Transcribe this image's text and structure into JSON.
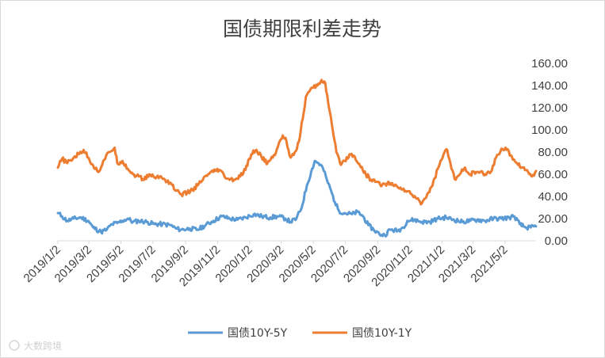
{
  "chart_data": {
    "type": "line",
    "title": "国债期限利差走势",
    "xlabel": "",
    "ylabel": "",
    "x_start": "2019-01-02",
    "x_end": "2021-06-30",
    "x_tick_labels": [
      "2019/1/2",
      "2019/3/2",
      "2019/5/2",
      "2019/7/2",
      "2019/9/2",
      "2019/11/2",
      "2020/1/2",
      "2020/3/2",
      "2020/5/2",
      "2020/7/2",
      "2020/9/2",
      "2020/11/2",
      "2021/1/2",
      "2021/3/2",
      "2021/5/2"
    ],
    "x_tick_dates": [
      "2019-01-02",
      "2019-03-02",
      "2019-05-02",
      "2019-07-02",
      "2019-09-02",
      "2019-11-02",
      "2020-01-02",
      "2020-03-02",
      "2020-05-02",
      "2020-07-02",
      "2020-09-02",
      "2020-11-02",
      "2021-01-02",
      "2021-03-02",
      "2021-05-02"
    ],
    "y_tick_labels": [
      "0.00",
      "20.00",
      "40.00",
      "60.00",
      "80.00",
      "100.00",
      "120.00",
      "140.00",
      "160.00"
    ],
    "ylim": [
      0,
      160
    ],
    "grid": false,
    "legend_position": "bottom",
    "series": [
      {
        "name": "国债10Y-5Y",
        "color": "#5b9bd5",
        "points": [
          [
            "2019-01-02",
            25
          ],
          [
            "2019-01-10",
            22
          ],
          [
            "2019-01-20",
            18
          ],
          [
            "2019-02-01",
            20
          ],
          [
            "2019-02-15",
            21
          ],
          [
            "2019-03-01",
            18
          ],
          [
            "2019-03-10",
            12
          ],
          [
            "2019-03-25",
            8
          ],
          [
            "2019-04-05",
            10
          ],
          [
            "2019-04-15",
            15
          ],
          [
            "2019-04-25",
            16
          ],
          [
            "2019-05-05",
            18
          ],
          [
            "2019-05-15",
            20
          ],
          [
            "2019-05-25",
            17
          ],
          [
            "2019-06-05",
            18
          ],
          [
            "2019-06-20",
            17
          ],
          [
            "2019-07-05",
            15
          ],
          [
            "2019-07-20",
            15
          ],
          [
            "2019-08-05",
            14
          ],
          [
            "2019-08-15",
            11
          ],
          [
            "2019-08-25",
            10
          ],
          [
            "2019-09-10",
            11
          ],
          [
            "2019-09-25",
            10
          ],
          [
            "2019-10-10",
            14
          ],
          [
            "2019-10-25",
            18
          ],
          [
            "2019-11-10",
            22
          ],
          [
            "2019-11-25",
            20
          ],
          [
            "2019-12-10",
            19
          ],
          [
            "2019-12-25",
            21
          ],
          [
            "2020-01-10",
            24
          ],
          [
            "2020-01-25",
            22
          ],
          [
            "2020-02-10",
            21
          ],
          [
            "2020-02-25",
            22
          ],
          [
            "2020-03-10",
            20
          ],
          [
            "2020-03-20",
            17
          ],
          [
            "2020-03-31",
            20
          ],
          [
            "2020-04-10",
            30
          ],
          [
            "2020-04-20",
            50
          ],
          [
            "2020-04-28",
            62
          ],
          [
            "2020-05-05",
            72
          ],
          [
            "2020-05-12",
            70
          ],
          [
            "2020-05-20",
            66
          ],
          [
            "2020-05-28",
            55
          ],
          [
            "2020-06-05",
            45
          ],
          [
            "2020-06-12",
            35
          ],
          [
            "2020-06-20",
            27
          ],
          [
            "2020-06-30",
            25
          ],
          [
            "2020-07-15",
            24
          ],
          [
            "2020-07-25",
            26
          ],
          [
            "2020-08-05",
            22
          ],
          [
            "2020-08-15",
            14
          ],
          [
            "2020-08-25",
            10
          ],
          [
            "2020-09-05",
            6
          ],
          [
            "2020-09-15",
            5
          ],
          [
            "2020-09-25",
            10
          ],
          [
            "2020-10-10",
            9
          ],
          [
            "2020-10-20",
            12
          ],
          [
            "2020-10-28",
            18
          ],
          [
            "2020-11-10",
            19
          ],
          [
            "2020-11-25",
            17
          ],
          [
            "2020-12-10",
            17
          ],
          [
            "2020-12-25",
            20
          ],
          [
            "2021-01-10",
            21
          ],
          [
            "2021-01-25",
            19
          ],
          [
            "2021-02-10",
            17
          ],
          [
            "2021-02-25",
            18
          ],
          [
            "2021-03-10",
            19
          ],
          [
            "2021-03-25",
            18
          ],
          [
            "2021-04-10",
            20
          ],
          [
            "2021-04-25",
            20
          ],
          [
            "2021-05-10",
            21
          ],
          [
            "2021-05-20",
            22
          ],
          [
            "2021-05-30",
            15
          ],
          [
            "2021-06-10",
            12
          ],
          [
            "2021-06-20",
            12
          ],
          [
            "2021-06-30",
            13
          ]
        ]
      },
      {
        "name": "国债10Y-1Y",
        "color": "#ed7d31",
        "points": [
          [
            "2019-01-02",
            66
          ],
          [
            "2019-01-10",
            74
          ],
          [
            "2019-01-20",
            70
          ],
          [
            "2019-02-01",
            75
          ],
          [
            "2019-02-10",
            78
          ],
          [
            "2019-02-20",
            82
          ],
          [
            "2019-03-01",
            75
          ],
          [
            "2019-03-10",
            68
          ],
          [
            "2019-03-20",
            62
          ],
          [
            "2019-03-31",
            73
          ],
          [
            "2019-04-10",
            80
          ],
          [
            "2019-04-20",
            84
          ],
          [
            "2019-04-25",
            70
          ],
          [
            "2019-05-05",
            72
          ],
          [
            "2019-05-15",
            65
          ],
          [
            "2019-05-25",
            60
          ],
          [
            "2019-06-05",
            58
          ],
          [
            "2019-06-15",
            55
          ],
          [
            "2019-06-25",
            60
          ],
          [
            "2019-07-05",
            57
          ],
          [
            "2019-07-15",
            58
          ],
          [
            "2019-07-25",
            55
          ],
          [
            "2019-08-05",
            52
          ],
          [
            "2019-08-15",
            45
          ],
          [
            "2019-08-25",
            42
          ],
          [
            "2019-09-05",
            43
          ],
          [
            "2019-09-15",
            46
          ],
          [
            "2019-09-25",
            50
          ],
          [
            "2019-10-05",
            55
          ],
          [
            "2019-10-15",
            60
          ],
          [
            "2019-10-25",
            62
          ],
          [
            "2019-11-05",
            64
          ],
          [
            "2019-11-15",
            58
          ],
          [
            "2019-11-25",
            55
          ],
          [
            "2019-12-05",
            55
          ],
          [
            "2019-12-15",
            58
          ],
          [
            "2019-12-25",
            64
          ],
          [
            "2020-01-05",
            78
          ],
          [
            "2020-01-15",
            82
          ],
          [
            "2020-01-25",
            75
          ],
          [
            "2020-02-05",
            70
          ],
          [
            "2020-02-15",
            75
          ],
          [
            "2020-02-25",
            85
          ],
          [
            "2020-03-05",
            95
          ],
          [
            "2020-03-12",
            90
          ],
          [
            "2020-03-20",
            75
          ],
          [
            "2020-03-28",
            80
          ],
          [
            "2020-04-05",
            90
          ],
          [
            "2020-04-12",
            110
          ],
          [
            "2020-04-18",
            130
          ],
          [
            "2020-04-25",
            135
          ],
          [
            "2020-05-02",
            138
          ],
          [
            "2020-05-10",
            140
          ],
          [
            "2020-05-18",
            145
          ],
          [
            "2020-05-25",
            142
          ],
          [
            "2020-06-01",
            120
          ],
          [
            "2020-06-08",
            100
          ],
          [
            "2020-06-15",
            80
          ],
          [
            "2020-06-22",
            70
          ],
          [
            "2020-07-01",
            72
          ],
          [
            "2020-07-10",
            78
          ],
          [
            "2020-07-20",
            76
          ],
          [
            "2020-07-30",
            68
          ],
          [
            "2020-08-10",
            60
          ],
          [
            "2020-08-20",
            55
          ],
          [
            "2020-09-01",
            53
          ],
          [
            "2020-09-10",
            50
          ],
          [
            "2020-09-20",
            52
          ],
          [
            "2020-10-01",
            50
          ],
          [
            "2020-10-15",
            48
          ],
          [
            "2020-10-25",
            45
          ],
          [
            "2020-11-05",
            42
          ],
          [
            "2020-11-15",
            38
          ],
          [
            "2020-11-25",
            34
          ],
          [
            "2020-12-05",
            42
          ],
          [
            "2020-12-15",
            50
          ],
          [
            "2020-12-25",
            65
          ],
          [
            "2021-01-05",
            78
          ],
          [
            "2021-01-12",
            82
          ],
          [
            "2021-01-20",
            65
          ],
          [
            "2021-01-28",
            55
          ],
          [
            "2021-02-05",
            60
          ],
          [
            "2021-02-15",
            66
          ],
          [
            "2021-02-25",
            60
          ],
          [
            "2021-03-10",
            62
          ],
          [
            "2021-03-25",
            60
          ],
          [
            "2021-04-05",
            62
          ],
          [
            "2021-04-15",
            75
          ],
          [
            "2021-04-25",
            83
          ],
          [
            "2021-05-05",
            82
          ],
          [
            "2021-05-15",
            76
          ],
          [
            "2021-05-25",
            70
          ],
          [
            "2021-06-05",
            66
          ],
          [
            "2021-06-15",
            62
          ],
          [
            "2021-06-22",
            58
          ],
          [
            "2021-06-30",
            63
          ]
        ]
      }
    ]
  },
  "watermark": "大数跨境"
}
